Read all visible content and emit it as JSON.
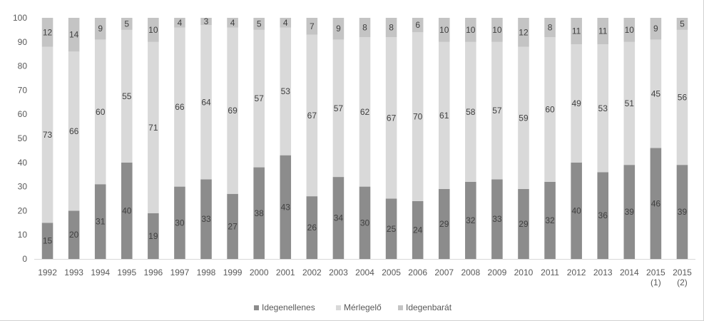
{
  "chart_data": {
    "type": "bar",
    "stacked": true,
    "categories": [
      "1992",
      "1993",
      "1994",
      "1995",
      "1996",
      "1997",
      "1998",
      "1999",
      "2000",
      "2001",
      "2002",
      "2003",
      "2004",
      "2005",
      "2006",
      "2007",
      "2008",
      "2009",
      "2010",
      "2011",
      "2012",
      "2013",
      "2014",
      "2015\n(1)",
      "2015\n(2)"
    ],
    "series": [
      {
        "name": "Idegenellenes",
        "color": "#8c8c8c",
        "values": [
          15,
          20,
          31,
          40,
          19,
          30,
          33,
          27,
          38,
          43,
          26,
          34,
          30,
          25,
          24,
          29,
          32,
          33,
          29,
          32,
          40,
          36,
          39,
          46,
          39
        ]
      },
      {
        "name": "Mérlegelő",
        "color": "#d9d9d9",
        "values": [
          73,
          66,
          60,
          55,
          71,
          66,
          64,
          69,
          57,
          53,
          67,
          57,
          62,
          67,
          70,
          61,
          58,
          57,
          59,
          60,
          49,
          53,
          51,
          45,
          56
        ]
      },
      {
        "name": "Idegenbarát",
        "color": "#c4c4c4",
        "values": [
          12,
          14,
          9,
          5,
          10,
          4,
          3,
          4,
          5,
          4,
          7,
          9,
          8,
          8,
          6,
          10,
          10,
          10,
          12,
          8,
          11,
          11,
          10,
          9,
          5
        ]
      }
    ],
    "yticks": [
      0,
      10,
      20,
      30,
      40,
      50,
      60,
      70,
      80,
      90,
      100
    ],
    "ylim": [
      0,
      100
    ],
    "grid": false,
    "legend": "bottom",
    "title": "",
    "xlabel": "",
    "ylabel": ""
  }
}
